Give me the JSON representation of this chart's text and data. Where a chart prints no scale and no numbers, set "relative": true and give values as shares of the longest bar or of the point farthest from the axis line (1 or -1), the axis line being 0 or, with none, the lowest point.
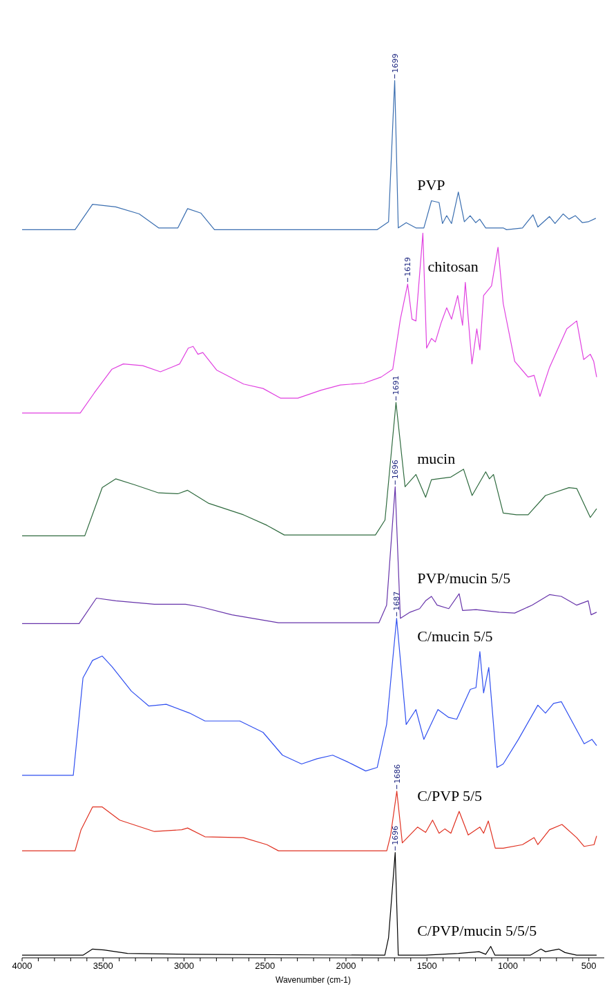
{
  "chart_data": {
    "type": "line",
    "relative": true,
    "xlabel": "Wavenumber (cm-1)",
    "xlim": [
      4000,
      405
    ],
    "xticks": [
      4000,
      {
        "value": 3900,
        "label": null
      },
      {
        "value": 3800,
        "label": null
      },
      {
        "value": 3700,
        "label": null
      },
      {
        "value": 3600,
        "label": null
      },
      3500,
      {
        "value": 3400,
        "label": null
      },
      {
        "value": 3300,
        "label": null
      },
      {
        "value": 3200,
        "label": null
      },
      {
        "value": 3100,
        "label": null
      },
      3000,
      {
        "value": 2900,
        "label": null
      },
      {
        "value": 2800,
        "label": null
      },
      {
        "value": 2700,
        "label": null
      },
      {
        "value": 2600,
        "label": null
      },
      2500,
      {
        "value": 2400,
        "label": null
      },
      {
        "value": 2300,
        "label": null
      },
      {
        "value": 2200,
        "label": null
      },
      {
        "value": 2100,
        "label": null
      },
      2000,
      {
        "value": 1900,
        "label": null
      },
      {
        "value": 1800,
        "label": null
      },
      {
        "value": 1700,
        "label": null
      },
      {
        "value": 1600,
        "label": null
      },
      1500,
      {
        "value": 1400,
        "label": null
      },
      {
        "value": 1300,
        "label": null
      },
      {
        "value": 1200,
        "label": null
      },
      {
        "value": 1100,
        "label": null
      },
      1000,
      {
        "value": 900,
        "label": null
      },
      {
        "value": 800,
        "label": null
      },
      {
        "value": 700,
        "label": null
      },
      {
        "value": 600,
        "label": null
      },
      500
    ],
    "tick_labels": "x",
    "legend": false,
    "marker": "none",
    "line_style": "solid",
    "series": [
      {
        "name": "PVP",
        "color": "#3a6eb0",
        "x": [
          4000,
          3673,
          3565,
          3422,
          3277,
          3157,
          3038,
          2978,
          2897,
          2812,
          1807,
          1737,
          1699,
          1677,
          1628,
          1568,
          1519,
          1472,
          1425,
          1404,
          1378,
          1348,
          1306,
          1269,
          1233,
          1199,
          1174,
          1137,
          1029,
          1008,
          910,
          845,
          815,
          743,
          709,
          659,
          623,
          583,
          540,
          504,
          457
        ],
        "values": [
          0.83,
          0.83,
          0.859,
          0.856,
          0.848,
          0.832,
          0.832,
          0.854,
          0.849,
          0.83,
          0.83,
          0.839,
          1.0,
          0.832,
          0.838,
          0.832,
          0.832,
          0.863,
          0.861,
          0.837,
          0.846,
          0.837,
          0.873,
          0.839,
          0.846,
          0.838,
          0.842,
          0.832,
          0.832,
          0.83,
          0.832,
          0.847,
          0.833,
          0.845,
          0.837,
          0.848,
          0.842,
          0.846,
          0.838,
          0.839,
          0.843
        ]
      },
      {
        "name": "chitosan",
        "color": "#e040e0",
        "x": [
          4000,
          3641,
          3554,
          3445,
          3375,
          3255,
          3146,
          3027,
          2974,
          2944,
          2914,
          2884,
          2799,
          2632,
          2512,
          2405,
          2297,
          2154,
          2035,
          1890,
          1783,
          1711,
          1664,
          1619,
          1592,
          1568,
          1525,
          1502,
          1472,
          1448,
          1412,
          1378,
          1348,
          1310,
          1280,
          1263,
          1222,
          1192,
          1173,
          1150,
          1101,
          1061,
          1029,
          958,
          875,
          838,
          802,
          743,
          636,
          575,
          532,
          491,
          470,
          452
        ],
        "values": [
          0.621,
          0.621,
          0.644,
          0.671,
          0.677,
          0.675,
          0.668,
          0.677,
          0.695,
          0.697,
          0.688,
          0.69,
          0.67,
          0.654,
          0.649,
          0.638,
          0.638,
          0.647,
          0.653,
          0.655,
          0.662,
          0.671,
          0.728,
          0.768,
          0.728,
          0.726,
          0.826,
          0.695,
          0.706,
          0.702,
          0.724,
          0.741,
          0.728,
          0.755,
          0.721,
          0.77,
          0.677,
          0.717,
          0.693,
          0.755,
          0.766,
          0.81,
          0.746,
          0.68,
          0.662,
          0.664,
          0.64,
          0.673,
          0.717,
          0.726,
          0.682,
          0.688,
          0.68,
          0.662
        ]
      },
      {
        "name": "mucin",
        "color": "#2e6a3e",
        "x": [
          4000,
          3613,
          3505,
          3422,
          3302,
          3157,
          3038,
          2978,
          2847,
          2633,
          2488,
          2381,
          1818,
          1759,
          1691,
          1635,
          1568,
          1508,
          1472,
          1352,
          1274,
          1221,
          1137,
          1114,
          1089,
          1029,
          947,
          875,
          768,
          623,
          575,
          491,
          452
        ],
        "values": [
          0.481,
          0.481,
          0.536,
          0.546,
          0.539,
          0.53,
          0.529,
          0.533,
          0.518,
          0.505,
          0.493,
          0.482,
          0.482,
          0.499,
          0.633,
          0.537,
          0.551,
          0.525,
          0.545,
          0.548,
          0.557,
          0.527,
          0.554,
          0.546,
          0.551,
          0.507,
          0.505,
          0.505,
          0.527,
          0.536,
          0.535,
          0.502,
          0.512
        ]
      },
      {
        "name": "PVP/mucin 5/5",
        "color": "#6633aa",
        "x": [
          4000,
          3648,
          3541,
          3422,
          3183,
          2991,
          2895,
          2705,
          2417,
          1796,
          1749,
          1696,
          1664,
          1604,
          1545,
          1508,
          1472,
          1437,
          1365,
          1301,
          1280,
          1197,
          1054,
          958,
          851,
          743,
          670,
          575,
          504,
          486,
          452
        ],
        "values": [
          0.381,
          0.381,
          0.41,
          0.407,
          0.403,
          0.403,
          0.4,
          0.391,
          0.382,
          0.382,
          0.402,
          0.537,
          0.387,
          0.394,
          0.398,
          0.407,
          0.412,
          0.402,
          0.398,
          0.415,
          0.396,
          0.397,
          0.394,
          0.393,
          0.402,
          0.414,
          0.412,
          0.402,
          0.407,
          0.391,
          0.394
        ]
      },
      {
        "name": "C/mucin 5/5",
        "color": "#2f4ff0",
        "x": [
          4000,
          3684,
          3624,
          3565,
          3505,
          3445,
          3325,
          3217,
          3110,
          2966,
          2871,
          2656,
          2512,
          2392,
          2274,
          2178,
          2082,
          1986,
          1878,
          1807,
          1749,
          1687,
          1628,
          1568,
          1519,
          1432,
          1365,
          1316,
          1232,
          1197,
          1173,
          1150,
          1118,
          1067,
          1029,
          935,
          815,
          768,
          718,
          670,
          529,
          481,
          452
        ],
        "values": [
          0.208,
          0.208,
          0.319,
          0.339,
          0.344,
          0.332,
          0.304,
          0.287,
          0.289,
          0.279,
          0.27,
          0.27,
          0.257,
          0.231,
          0.221,
          0.227,
          0.231,
          0.223,
          0.213,
          0.217,
          0.266,
          0.387,
          0.266,
          0.283,
          0.249,
          0.283,
          0.274,
          0.272,
          0.306,
          0.308,
          0.349,
          0.302,
          0.331,
          0.217,
          0.221,
          0.249,
          0.288,
          0.279,
          0.29,
          0.292,
          0.244,
          0.249,
          0.242
        ]
      },
      {
        "name": "C/PVP 5/5",
        "color": "#e03020",
        "x": [
          4000,
          3673,
          3636,
          3565,
          3505,
          3397,
          3183,
          3014,
          2978,
          2871,
          2633,
          2488,
          2417,
          1748,
          1724,
          1686,
          1652,
          1558,
          1508,
          1465,
          1425,
          1389,
          1352,
          1301,
          1245,
          1173,
          1150,
          1121,
          1078,
          1029,
          910,
          838,
          815,
          743,
          666,
          575,
          529,
          468,
          452
        ],
        "values": [
          0.122,
          0.122,
          0.146,
          0.172,
          0.172,
          0.157,
          0.144,
          0.146,
          0.148,
          0.138,
          0.137,
          0.129,
          0.122,
          0.122,
          0.14,
          0.19,
          0.131,
          0.149,
          0.143,
          0.157,
          0.142,
          0.147,
          0.142,
          0.167,
          0.14,
          0.149,
          0.142,
          0.156,
          0.125,
          0.125,
          0.129,
          0.137,
          0.129,
          0.146,
          0.152,
          0.137,
          0.127,
          0.129,
          0.139
        ]
      },
      {
        "name": "C/PVP/mucin 5/5/5",
        "color": "#000000",
        "x": [
          4000,
          3624,
          3565,
          3494,
          3349,
          2966,
          1760,
          1737,
          1696,
          1677,
          1508,
          1306,
          1178,
          1137,
          1106,
          1080,
          862,
          796,
          768,
          686,
          647,
          575,
          452
        ],
        "values": [
          0.003,
          0.003,
          0.01,
          0.009,
          0.005,
          0.004,
          0.003,
          0.023,
          0.12,
          0.003,
          0.003,
          0.005,
          0.007,
          0.004,
          0.013,
          0.003,
          0.003,
          0.01,
          0.007,
          0.01,
          0.006,
          0.003,
          0.003
        ]
      }
    ],
    "annotations": [
      {
        "text": "1699",
        "x": 1699,
        "y": 1.0
      },
      {
        "text": "1619",
        "x": 1619,
        "y": 0.768
      },
      {
        "text": "1691",
        "x": 1691,
        "y": 0.633
      },
      {
        "text": "1696",
        "x": 1696,
        "y": 0.537
      },
      {
        "text": "1687",
        "x": 1687,
        "y": 0.387
      },
      {
        "text": "1686",
        "x": 1686,
        "y": 0.19
      },
      {
        "text": "1696",
        "x": 1696,
        "y": 0.12
      }
    ]
  }
}
